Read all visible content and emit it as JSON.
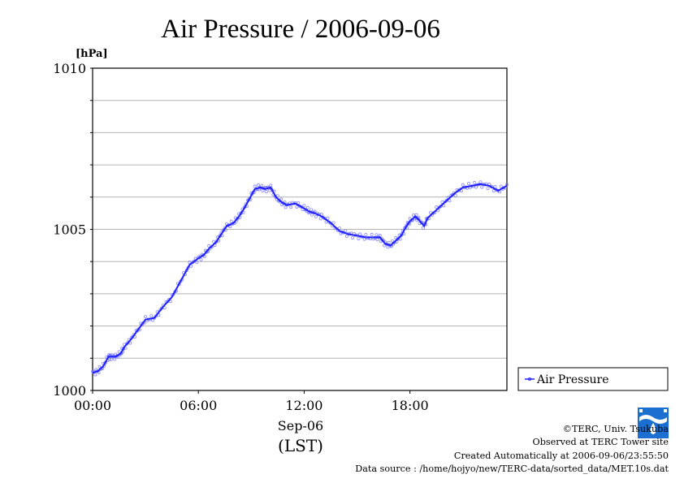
{
  "chart_data": {
    "type": "line",
    "title": "Air Pressure / 2006-09-06",
    "unit_label": "[hPa]",
    "x_unit": "hours",
    "xlim": [
      0,
      23.5
    ],
    "ylim": [
      1000,
      1010
    ],
    "yticks": [
      1000,
      1005,
      1010
    ],
    "y_minor_step": 1,
    "xticks": [
      {
        "value": 0,
        "label": "00:00"
      },
      {
        "value": 6,
        "label": "06:00"
      },
      {
        "value": 12,
        "label": "12:00"
      },
      {
        "value": 18,
        "label": "18:00"
      }
    ],
    "xlabel_line1": "Sep-06",
    "xlabel_line2": "(LST)",
    "grid": "horizontal",
    "legend_position": "right",
    "colors": {
      "series": "#2020ff",
      "marker": "#7a7aff",
      "grid": "#b4b4b4"
    },
    "series": [
      {
        "name": "Air Pressure",
        "x": [
          0.0,
          0.3,
          0.6,
          0.9,
          1.0,
          1.3,
          1.6,
          1.8,
          2.2,
          2.6,
          3.0,
          3.5,
          4.0,
          4.5,
          5.0,
          5.5,
          6.0,
          6.3,
          6.6,
          7.0,
          7.3,
          7.6,
          8.0,
          8.3,
          8.6,
          8.9,
          9.2,
          9.5,
          9.8,
          10.1,
          10.4,
          10.7,
          11.0,
          11.5,
          12.0,
          12.3,
          12.6,
          13.0,
          13.5,
          14.0,
          14.5,
          15.0,
          15.5,
          16.0,
          16.3,
          16.6,
          16.9,
          17.2,
          17.5,
          17.8,
          18.0,
          18.3,
          18.5,
          18.8,
          19.0,
          19.5,
          20.0,
          20.5,
          21.0,
          21.5,
          22.0,
          22.5,
          23.0,
          23.5
        ],
        "y": [
          1000.55,
          1000.6,
          1000.75,
          1001.05,
          1001.05,
          1001.05,
          1001.15,
          1001.35,
          1001.6,
          1001.9,
          1002.2,
          1002.25,
          1002.6,
          1002.9,
          1003.4,
          1003.9,
          1004.1,
          1004.2,
          1004.4,
          1004.6,
          1004.85,
          1005.1,
          1005.2,
          1005.4,
          1005.65,
          1005.95,
          1006.25,
          1006.3,
          1006.25,
          1006.3,
          1006.0,
          1005.85,
          1005.75,
          1005.8,
          1005.65,
          1005.55,
          1005.5,
          1005.4,
          1005.2,
          1004.95,
          1004.85,
          1004.8,
          1004.75,
          1004.75,
          1004.75,
          1004.55,
          1004.5,
          1004.65,
          1004.8,
          1005.1,
          1005.25,
          1005.4,
          1005.3,
          1005.1,
          1005.35,
          1005.6,
          1005.85,
          1006.1,
          1006.3,
          1006.35,
          1006.4,
          1006.35,
          1006.2,
          1006.35
        ]
      }
    ]
  },
  "credits": {
    "copyright": "©TERC, Univ. Tsukuba",
    "observed": "Observed at TERC Tower site",
    "created": "Created Automatically at 2006-09-06/23:55:50",
    "source": "Data source : /home/hojyo/new/TERC-data/sorted_data/MET.10s.dat"
  },
  "logo": {
    "icon": "terc-logo",
    "text": "TERC",
    "color": "#1a6fd0"
  }
}
